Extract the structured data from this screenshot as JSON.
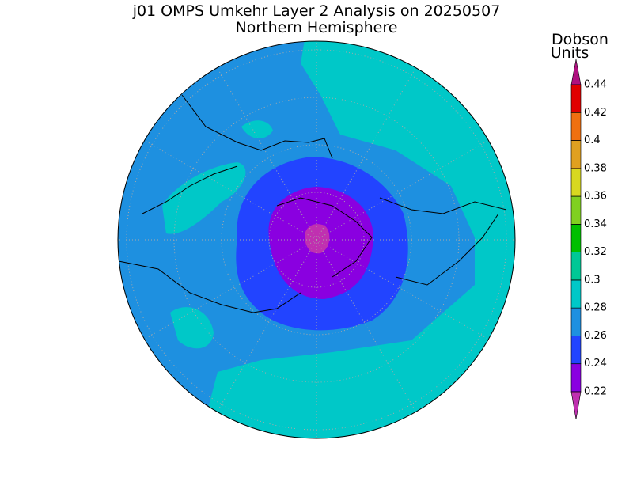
{
  "header": {
    "title": "j01 OMPS Umkehr Layer 2 Analysis on 20250507",
    "subtitle": "Northern Hemisphere"
  },
  "colorbar": {
    "units": [
      "Dobson",
      "Units"
    ],
    "levels": [
      0.22,
      0.24,
      0.26,
      0.28,
      0.3,
      0.32,
      0.34,
      0.36,
      0.38,
      0.4,
      0.42,
      0.44
    ],
    "colors": [
      "#8a00e0",
      "#2244ff",
      "#1e90e0",
      "#00c8c8",
      "#00c896",
      "#00c000",
      "#80d020",
      "#d8d820",
      "#e0a020",
      "#f07010",
      "#e00000"
    ],
    "under_color": "#c030b0",
    "over_color": "#b01080"
  }
}
